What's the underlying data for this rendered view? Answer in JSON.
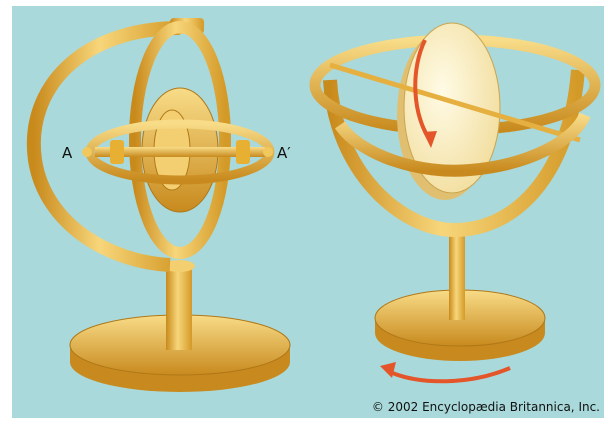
{
  "labels": {
    "a": "A",
    "a_prime": "A′"
  },
  "credit": "© 2002 Encyclopædia Britannica, Inc."
}
